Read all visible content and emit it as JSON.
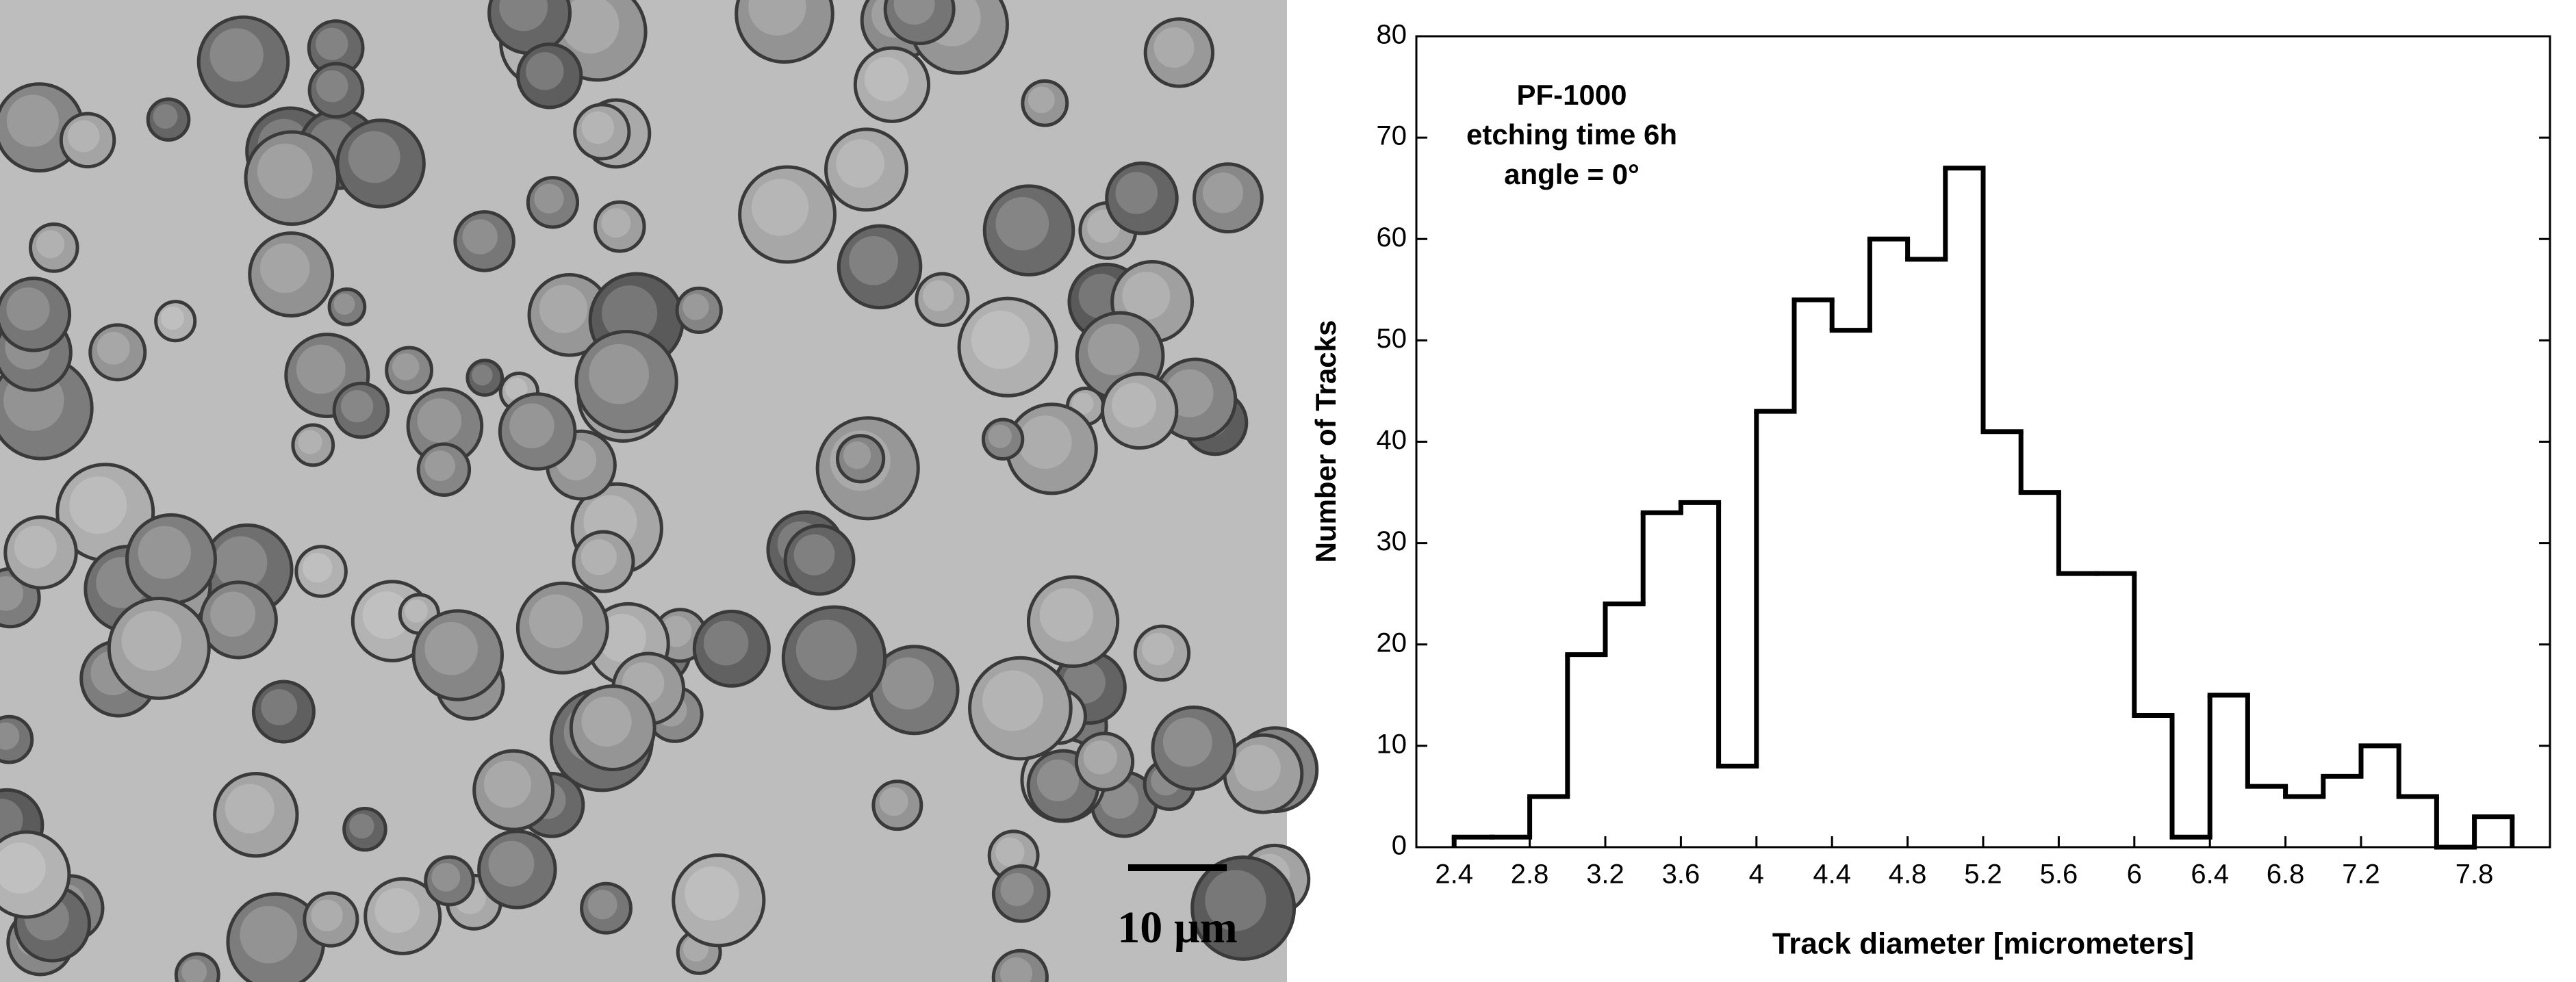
{
  "image": {
    "scale_bar_label": "10 µm"
  },
  "chart_data": {
    "type": "histogram",
    "x_label": "Track diameter [micrometers]",
    "y_label": "Number of Tracks",
    "annotations": [
      "PF-1000",
      "etching time 6h",
      "angle = 0°"
    ],
    "bins": [
      2.4,
      2.6,
      2.8,
      3.0,
      3.2,
      3.4,
      3.6,
      3.8,
      4.0,
      4.2,
      4.4,
      4.6,
      4.8,
      5.0,
      5.2,
      5.4,
      5.6,
      5.8,
      6.0,
      6.2,
      6.4,
      6.6,
      6.8,
      7.0,
      7.2,
      7.4,
      7.6,
      7.8,
      8.0
    ],
    "counts": [
      1,
      1,
      5,
      19,
      24,
      33,
      34,
      8,
      43,
      54,
      51,
      60,
      58,
      67,
      41,
      35,
      27,
      27,
      13,
      1,
      15,
      6,
      5,
      7,
      10,
      5,
      0,
      3
    ],
    "color": "#000000",
    "xlim": [
      2.2,
      8.2
    ],
    "xticks": [
      2.4,
      2.8,
      3.2,
      3.6,
      4.0,
      4.4,
      4.8,
      5.2,
      5.6,
      6.0,
      6.4,
      6.8,
      7.2,
      7.8
    ],
    "ylim": [
      0,
      80
    ],
    "yticks": [
      0,
      10,
      20,
      30,
      40,
      50,
      60,
      70,
      80
    ]
  }
}
